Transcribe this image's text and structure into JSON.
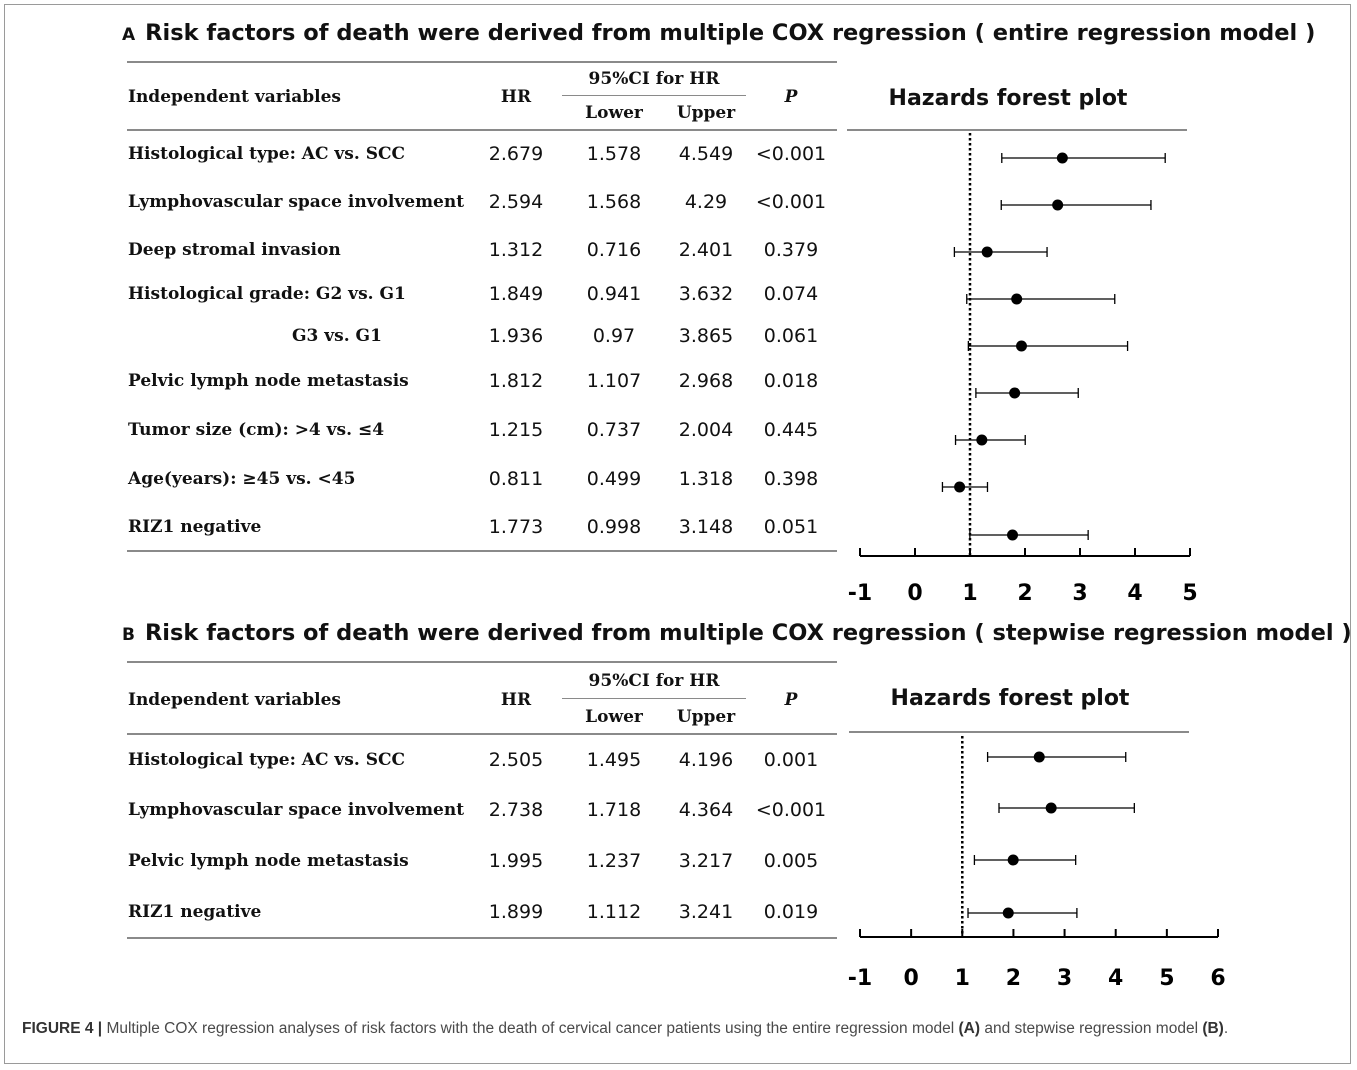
{
  "panels": [
    {
      "letter": "A",
      "title": "Risk factors  of death  were derived from multiple COX regression ( entire regression model )",
      "headers": {
        "variable": "Independent variables",
        "hr": "HR",
        "ci_group": "95%CI for HR",
        "lower": "Lower",
        "upper": "Upper",
        "p": "P"
      },
      "plot_title": "Hazards forest plot",
      "rows": [
        {
          "label": "Histological type: AC vs. SCC",
          "hr": "2.679",
          "lower": "1.578",
          "upper": "4.549",
          "p": "<0.001"
        },
        {
          "label": "Lymphovascular space involvement",
          "hr": "2.594",
          "lower": "1.568",
          "upper": "4.29",
          "p": "<0.001"
        },
        {
          "label": "Deep stromal invasion",
          "hr": "1.312",
          "lower": "0.716",
          "upper": "2.401",
          "p": "0.379"
        },
        {
          "label": "Histological grade: G2 vs. G1",
          "hr": "1.849",
          "lower": "0.941",
          "upper": "3.632",
          "p": "0.074"
        },
        {
          "label": "G3 vs. G1",
          "hr": "1.936",
          "lower": "0.97",
          "upper": "3.865",
          "p": "0.061"
        },
        {
          "label": "Pelvic lymph node metastasis",
          "hr": "1.812",
          "lower": "1.107",
          "upper": "2.968",
          "p": "0.018"
        },
        {
          "label": "Tumor size (cm):  >4 vs. ≤4",
          "hr": "1.215",
          "lower": "0.737",
          "upper": "2.004",
          "p": "0.445"
        },
        {
          "label": "Age(years): ≥45 vs. <45",
          "hr": "0.811",
          "lower": "0.499",
          "upper": "1.318",
          "p": "0.398"
        },
        {
          "label": "RIZ1 negative",
          "hr": "1.773",
          "lower": "0.998",
          "upper": "3.148",
          "p": "0.051"
        }
      ]
    },
    {
      "letter": "B",
      "title": "Risk factors  of death were derived from multiple COX regression ( stepwise regression model )",
      "headers": {
        "variable": "Independent variables",
        "hr": "HR",
        "ci_group": "95%CI for HR",
        "lower": "Lower",
        "upper": "Upper",
        "p": "P"
      },
      "plot_title": "Hazards forest plot",
      "rows": [
        {
          "label": "Histological type: AC vs. SCC",
          "hr": "2.505",
          "lower": "1.495",
          "upper": "4.196",
          "p": "0.001"
        },
        {
          "label": "Lymphovascular space involvement",
          "hr": "2.738",
          "lower": "1.718",
          "upper": "4.364",
          "p": "<0.001"
        },
        {
          "label": "Pelvic lymph node metastasis",
          "hr": "1.995",
          "lower": "1.237",
          "upper": "3.217",
          "p": "0.005"
        },
        {
          "label": "RIZ1 negative",
          "hr": "1.899",
          "lower": "1.112",
          "upper": "3.241",
          "p": "0.019"
        }
      ]
    }
  ],
  "chart_data": [
    {
      "type": "forest",
      "title": "Hazards forest plot",
      "xlim": [
        -1,
        5
      ],
      "xticks": [
        -1,
        0,
        1,
        2,
        3,
        4,
        5
      ],
      "reference_line": 1,
      "categories": [
        "Histological type: AC vs. SCC",
        "Lymphovascular space involvement",
        "Deep stromal invasion",
        "Histological grade: G2 vs. G1",
        "G3 vs. G1",
        "Pelvic lymph node metastasis",
        "Tumor size (cm):  >4 vs. ≤4",
        "Age(years): ≥45 vs. <45",
        "RIZ1 negative"
      ],
      "hr": [
        2.679,
        2.594,
        1.312,
        1.849,
        1.936,
        1.812,
        1.215,
        0.811,
        1.773
      ],
      "lower": [
        1.578,
        1.568,
        0.716,
        0.941,
        0.97,
        1.107,
        0.737,
        0.499,
        0.998
      ],
      "upper": [
        4.549,
        4.29,
        2.401,
        3.632,
        3.865,
        2.968,
        2.004,
        1.318,
        3.148
      ]
    },
    {
      "type": "forest",
      "title": "Hazards forest plot",
      "xlim": [
        -1,
        6
      ],
      "xticks": [
        -1,
        0,
        1,
        2,
        3,
        4,
        5,
        6
      ],
      "reference_line": 1,
      "categories": [
        "Histological type: AC vs. SCC",
        "Lymphovascular space involvement",
        "Pelvic lymph node metastasis",
        "RIZ1 negative"
      ],
      "hr": [
        2.505,
        2.738,
        1.995,
        1.899
      ],
      "lower": [
        1.495,
        1.718,
        1.237,
        1.112
      ],
      "upper": [
        4.196,
        4.364,
        3.217,
        3.241
      ]
    }
  ],
  "caption": {
    "figure_label": "FIGURE 4 |",
    "text_1": " Multiple COX regression analyses of risk factors with the death of cervical cancer patients using the entire regression model ",
    "ref_a": "(A)",
    "text_2": " and stepwise regression model ",
    "ref_b": "(B)",
    "text_3": "."
  }
}
